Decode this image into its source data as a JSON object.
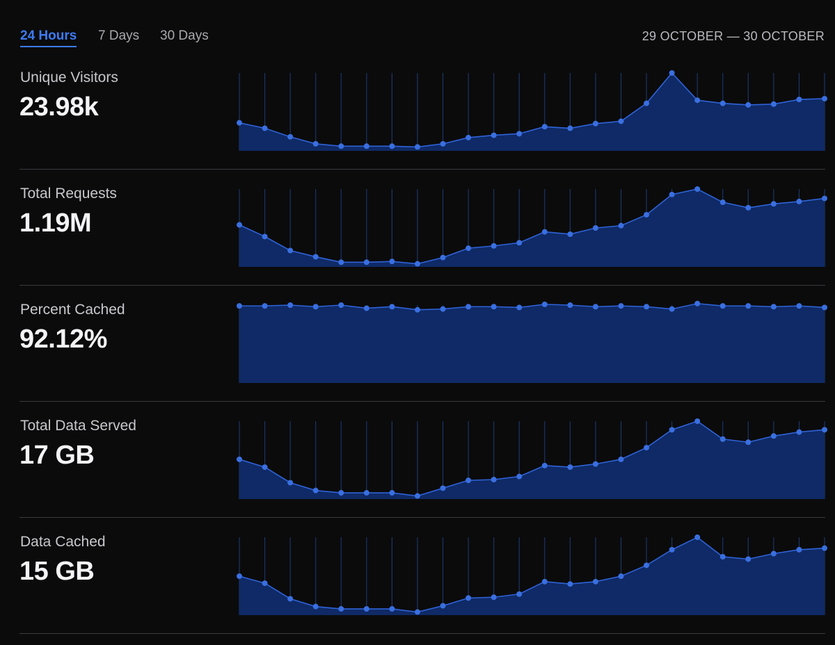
{
  "tabs": [
    {
      "label": "24 Hours",
      "active": true
    },
    {
      "label": "7 Days",
      "active": false
    },
    {
      "label": "30 Days",
      "active": false
    }
  ],
  "date_range": "29 OCTOBER — 30 OCTOBER",
  "colors": {
    "accent": "#3d7bf2",
    "area_fill": "#0f2a66",
    "line": "#2f63d8",
    "point": "#3a6fe0",
    "grid": "#1b3565"
  },
  "metrics": [
    {
      "label": "Unique Visitors",
      "value": "23.98k",
      "series": [
        0.36,
        0.29,
        0.18,
        0.09,
        0.06,
        0.06,
        0.06,
        0.05,
        0.09,
        0.17,
        0.2,
        0.22,
        0.31,
        0.29,
        0.35,
        0.38,
        0.61,
        1.0,
        0.65,
        0.61,
        0.59,
        0.6,
        0.66,
        0.67
      ]
    },
    {
      "label": "Total Requests",
      "value": "1.19M",
      "series": [
        0.54,
        0.39,
        0.21,
        0.13,
        0.06,
        0.06,
        0.07,
        0.04,
        0.12,
        0.24,
        0.27,
        0.31,
        0.45,
        0.42,
        0.5,
        0.53,
        0.67,
        0.93,
        1.0,
        0.83,
        0.76,
        0.81,
        0.84,
        0.88
      ]
    },
    {
      "label": "Percent Cached",
      "value": "92.12%",
      "series": [
        0.99,
        0.99,
        1.0,
        0.98,
        1.0,
        0.96,
        0.98,
        0.94,
        0.95,
        0.98,
        0.98,
        0.97,
        1.01,
        1.0,
        0.98,
        0.99,
        0.98,
        0.95,
        1.02,
        0.99,
        0.99,
        0.98,
        0.99,
        0.97
      ]
    },
    {
      "label": "Total Data Served",
      "value": "17 GB",
      "series": [
        0.51,
        0.41,
        0.21,
        0.11,
        0.08,
        0.08,
        0.08,
        0.04,
        0.14,
        0.24,
        0.25,
        0.29,
        0.43,
        0.41,
        0.45,
        0.51,
        0.66,
        0.89,
        1.0,
        0.77,
        0.73,
        0.81,
        0.86,
        0.89
      ]
    },
    {
      "label": "Data Cached",
      "value": "15 GB",
      "series": [
        0.5,
        0.41,
        0.21,
        0.11,
        0.08,
        0.08,
        0.08,
        0.04,
        0.12,
        0.22,
        0.23,
        0.27,
        0.43,
        0.4,
        0.43,
        0.5,
        0.64,
        0.84,
        1.0,
        0.75,
        0.72,
        0.79,
        0.84,
        0.86
      ]
    }
  ]
}
